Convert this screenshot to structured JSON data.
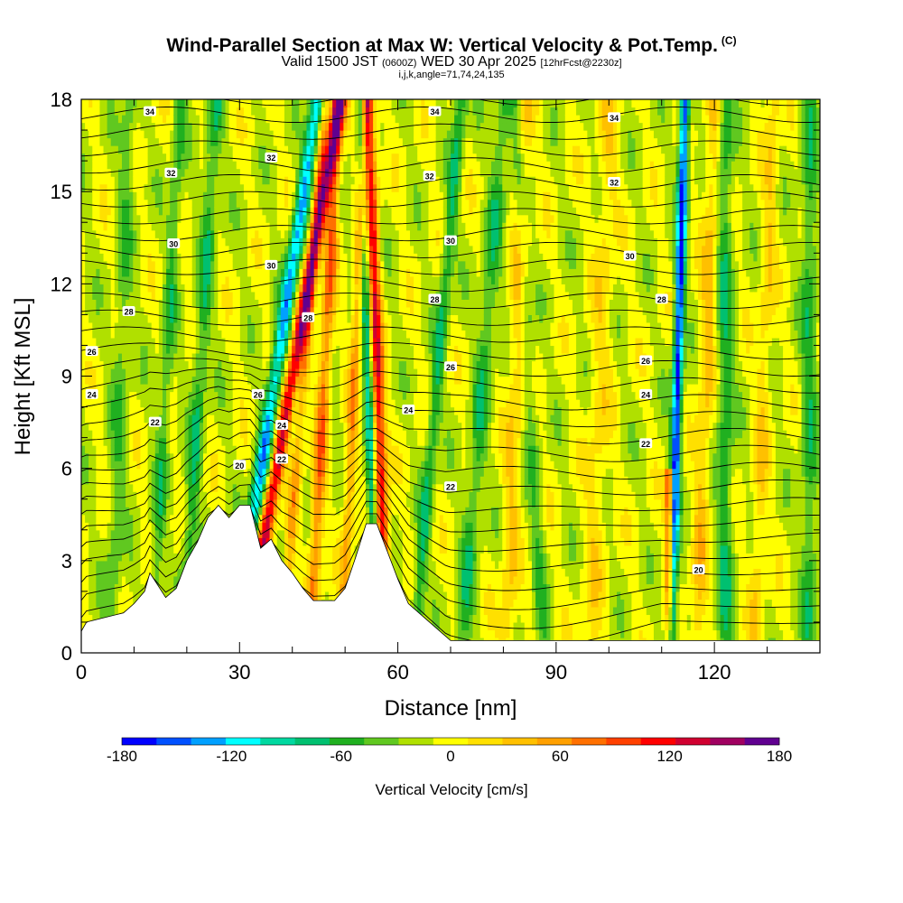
{
  "header": {
    "title": "Wind-Parallel Section at Max W: Vertical Velocity & Pot.Temp.",
    "title_suffix": "(C)",
    "valid_prefix": "Valid 1500 JST",
    "valid_utc": "(0600Z)",
    "valid_date": "WED 30 Apr 2025",
    "forecast_info": "[12hrFcst@2230z]",
    "indices": "i,j,k,angle=71,74,24,135"
  },
  "chart_data": {
    "type": "heatmap",
    "xlabel": "Distance [nm]",
    "ylabel": "Height [Kft MSL]",
    "xlim": [
      0,
      140
    ],
    "ylim": [
      0,
      18
    ],
    "x_ticks": [
      0,
      30,
      60,
      90,
      120
    ],
    "y_ticks": [
      0,
      3,
      6,
      9,
      12,
      15,
      18
    ],
    "colorbar": {
      "label": "Vertical Velocity [cm/s]",
      "range": [
        -180,
        180
      ],
      "step": 20,
      "tick_labels": [
        -180,
        -120,
        -60,
        0,
        60,
        120,
        180
      ],
      "colors": [
        "#0000ff",
        "#0050ff",
        "#00a0ff",
        "#00ffff",
        "#00d8a0",
        "#00c070",
        "#20b020",
        "#60c820",
        "#b0e000",
        "#ffff00",
        "#ffe000",
        "#ffc000",
        "#ffa000",
        "#ff7000",
        "#ff4000",
        "#ff0000",
        "#d00030",
        "#a00060",
        "#600090"
      ]
    },
    "terrain": [
      [
        0,
        0.7
      ],
      [
        1,
        1.0
      ],
      [
        8,
        1.3
      ],
      [
        10,
        1.6
      ],
      [
        12,
        2.0
      ],
      [
        13,
        2.6
      ],
      [
        16,
        1.8
      ],
      [
        18,
        2.1
      ],
      [
        20,
        3.0
      ],
      [
        22,
        3.6
      ],
      [
        24,
        4.4
      ],
      [
        26,
        4.8
      ],
      [
        28,
        4.4
      ],
      [
        30,
        4.8
      ],
      [
        32,
        4.8
      ],
      [
        34,
        3.4
      ],
      [
        36,
        3.7
      ],
      [
        38,
        3.0
      ],
      [
        40,
        2.6
      ],
      [
        42,
        2.1
      ],
      [
        44,
        1.7
      ],
      [
        48,
        1.7
      ],
      [
        50,
        2.1
      ],
      [
        52,
        3.1
      ],
      [
        54,
        4.2
      ],
      [
        56,
        4.2
      ],
      [
        58,
        3.3
      ],
      [
        60,
        2.4
      ],
      [
        62,
        1.6
      ],
      [
        64,
        1.3
      ],
      [
        66,
        1.0
      ],
      [
        68,
        0.7
      ],
      [
        70,
        0.4
      ],
      [
        140,
        0.4
      ]
    ],
    "theta_contour_labels": [
      {
        "v": "34",
        "x": 13,
        "y": 17.6
      },
      {
        "v": "32",
        "x": 17,
        "y": 15.6
      },
      {
        "v": "30",
        "x": 17.5,
        "y": 13.3
      },
      {
        "v": "28",
        "x": 9,
        "y": 11.1
      },
      {
        "v": "26",
        "x": 2,
        "y": 9.8
      },
      {
        "v": "24",
        "x": 2,
        "y": 8.4
      },
      {
        "v": "22",
        "x": 14,
        "y": 7.5
      },
      {
        "v": "20",
        "x": 30,
        "y": 6.1
      },
      {
        "v": "32",
        "x": 36,
        "y": 16.1
      },
      {
        "v": "30",
        "x": 36,
        "y": 12.6
      },
      {
        "v": "28",
        "x": 43,
        "y": 10.9
      },
      {
        "v": "26",
        "x": 33.5,
        "y": 8.4
      },
      {
        "v": "24",
        "x": 38,
        "y": 7.4
      },
      {
        "v": "22",
        "x": 38,
        "y": 6.3
      },
      {
        "v": "34",
        "x": 67,
        "y": 17.6
      },
      {
        "v": "32",
        "x": 66,
        "y": 15.5
      },
      {
        "v": "30",
        "x": 70,
        "y": 13.4
      },
      {
        "v": "28",
        "x": 67,
        "y": 11.5
      },
      {
        "v": "26",
        "x": 70,
        "y": 9.3
      },
      {
        "v": "24",
        "x": 62,
        "y": 7.9
      },
      {
        "v": "22",
        "x": 70,
        "y": 5.4
      },
      {
        "v": "34",
        "x": 101,
        "y": 17.4
      },
      {
        "v": "32",
        "x": 101,
        "y": 15.3
      },
      {
        "v": "30",
        "x": 104,
        "y": 12.9
      },
      {
        "v": "28",
        "x": 110,
        "y": 11.5
      },
      {
        "v": "26",
        "x": 107,
        "y": 9.5
      },
      {
        "v": "24",
        "x": 107,
        "y": 8.4
      },
      {
        "v": "22",
        "x": 107,
        "y": 6.8
      },
      {
        "v": "20",
        "x": 117,
        "y": 2.7
      }
    ],
    "colorbar_title": "Vertical Velocity [cm/s]"
  }
}
